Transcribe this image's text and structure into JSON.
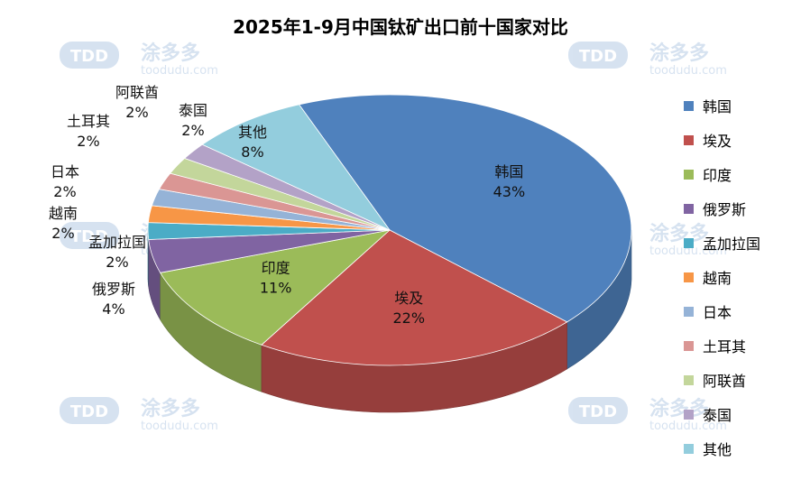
{
  "chart_data": {
    "type": "pie",
    "title": "2025年1-9月中国钛矿出口前十国家对比",
    "categories": [
      "韩国",
      "埃及",
      "印度",
      "俄罗斯",
      "孟加拉国",
      "越南",
      "日本",
      "土耳其",
      "阿联酋",
      "泰国",
      "其他"
    ],
    "values": [
      43,
      22,
      11,
      4,
      2,
      2,
      2,
      2,
      2,
      2,
      8
    ],
    "value_labels": [
      "43%",
      "22%",
      "11%",
      "4%",
      "2%",
      "2%",
      "2%",
      "2%",
      "2%",
      "2%",
      "8%"
    ],
    "colors": [
      "#4F81BD",
      "#C0504D",
      "#9BBB59",
      "#8064A2",
      "#4BACC6",
      "#F79646",
      "#95B3D7",
      "#DA9694",
      "#C3D69B",
      "#B3A2C7",
      "#93CDDD"
    ],
    "legend_position": "right",
    "style": "3d"
  },
  "watermark": {
    "brand": "涂多多",
    "logo": "TDD",
    "url": "toodudu.com"
  }
}
